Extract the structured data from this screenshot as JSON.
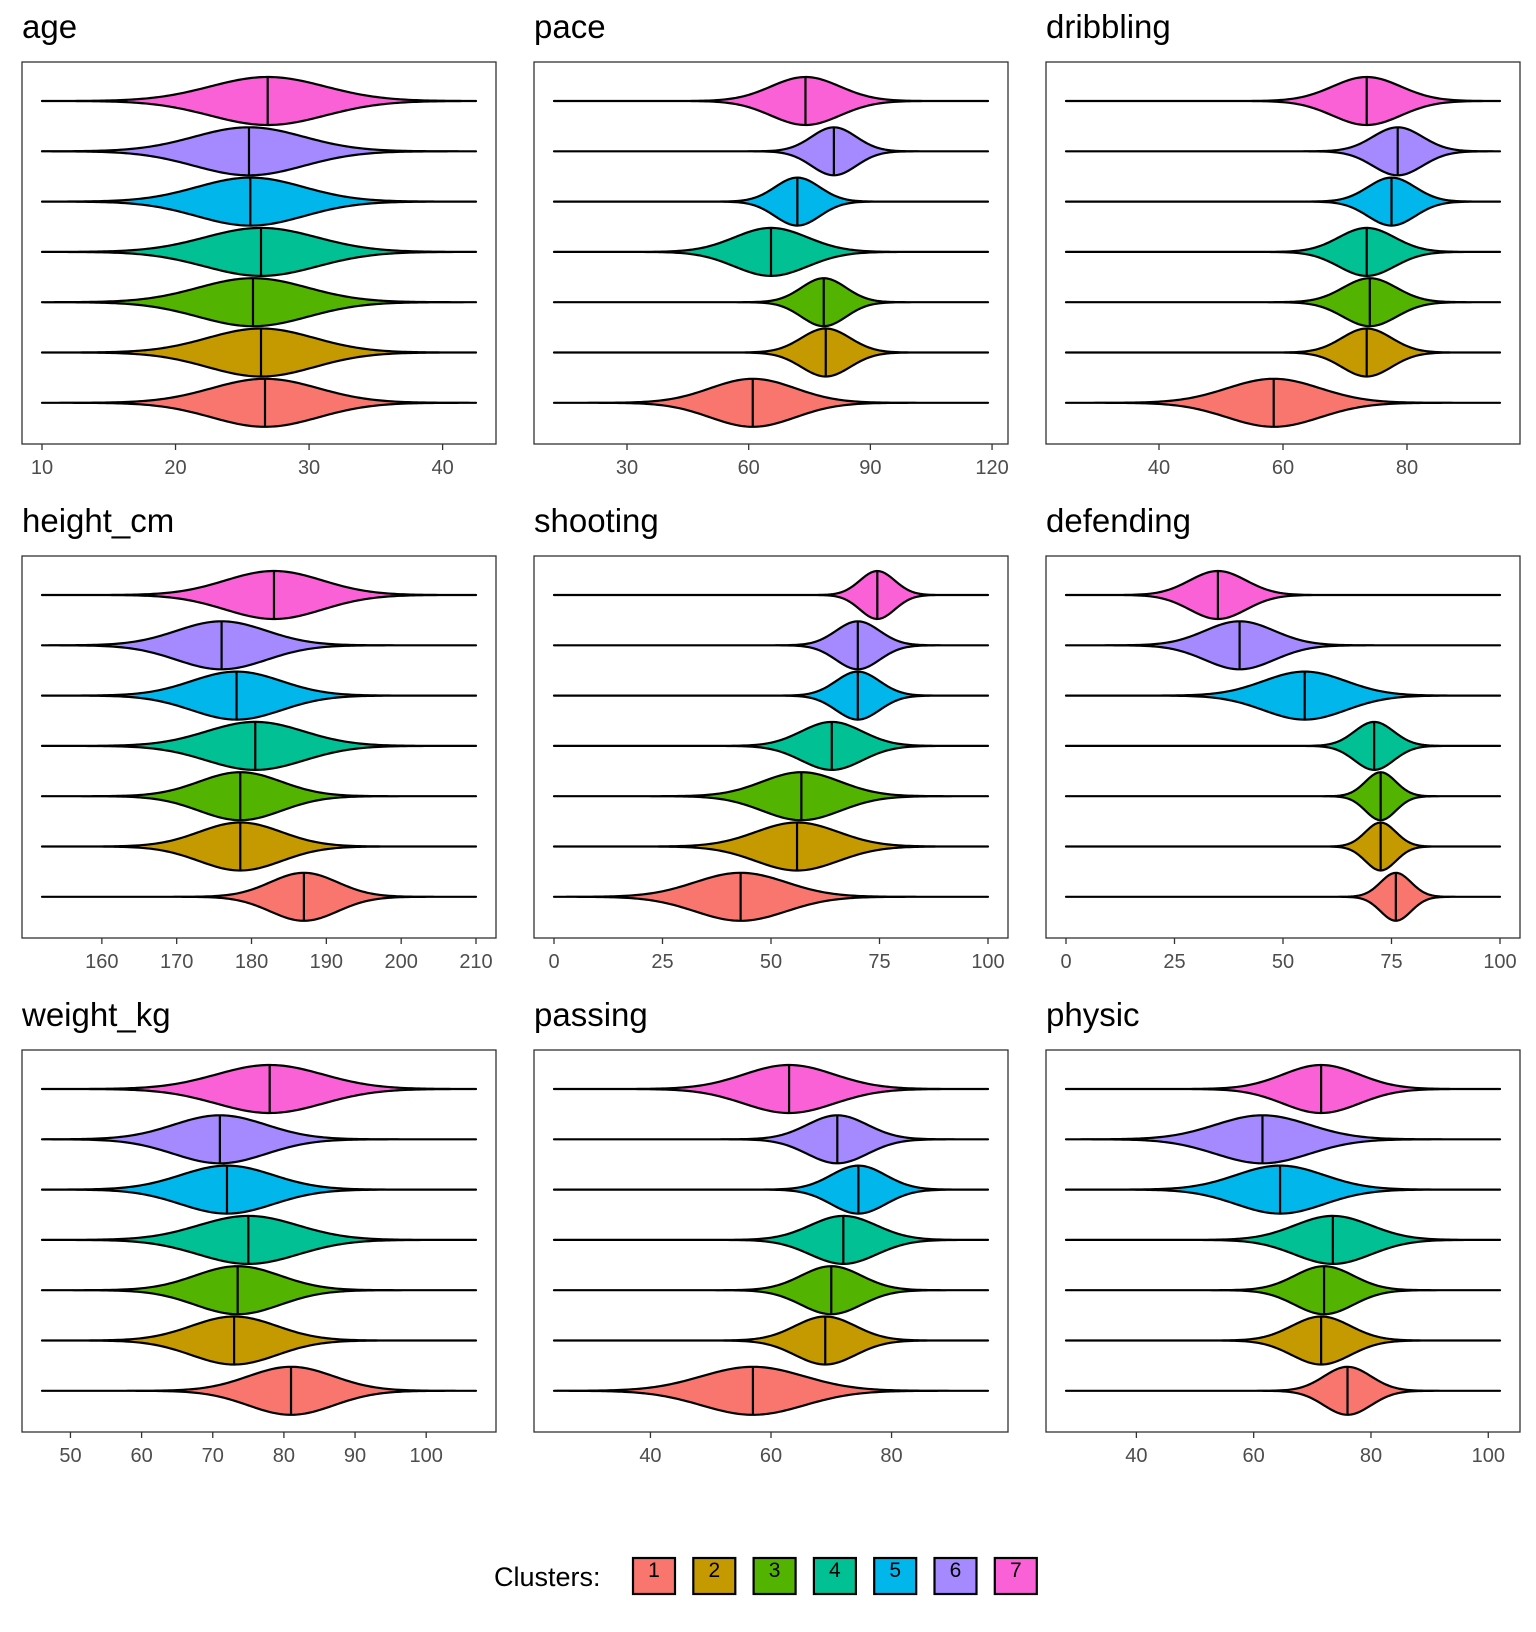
{
  "legend": {
    "title": "Clusters:",
    "keys": [
      "1",
      "2",
      "3",
      "4",
      "5",
      "6",
      "7"
    ],
    "colors": [
      "#F8766D",
      "#C49A00",
      "#53B400",
      "#00C094",
      "#00B6EB",
      "#A58AFF",
      "#FB61D7"
    ]
  },
  "chart_data": [
    {
      "type": "violin",
      "title": "age",
      "xlim": [
        10,
        42.5
      ],
      "ticks": [
        10,
        20,
        30,
        40
      ],
      "tick_labels": [
        "10",
        "20",
        "30",
        "40"
      ],
      "series": [
        {
          "name": "1",
          "median": 26.7,
          "sd": 4.0
        },
        {
          "name": "2",
          "median": 26.4,
          "sd": 4.0
        },
        {
          "name": "3",
          "median": 25.8,
          "sd": 4.1
        },
        {
          "name": "4",
          "median": 26.4,
          "sd": 4.2
        },
        {
          "name": "5",
          "median": 25.6,
          "sd": 4.0
        },
        {
          "name": "6",
          "median": 25.5,
          "sd": 4.1
        },
        {
          "name": "7",
          "median": 26.9,
          "sd": 4.3
        }
      ]
    },
    {
      "type": "violin",
      "title": "pace",
      "xlim": [
        12,
        119
      ],
      "ticks": [
        30,
        60,
        90,
        120
      ],
      "tick_labels": [
        "30",
        "60",
        "90",
        "120"
      ],
      "series": [
        {
          "name": "1",
          "median": 61,
          "sd": 10.5
        },
        {
          "name": "2",
          "median": 79,
          "sd": 6.0
        },
        {
          "name": "3",
          "median": 78.5,
          "sd": 5.5
        },
        {
          "name": "4",
          "median": 65.5,
          "sd": 9.0
        },
        {
          "name": "5",
          "median": 72,
          "sd": 5.5
        },
        {
          "name": "6",
          "median": 81,
          "sd": 5.5
        },
        {
          "name": "7",
          "median": 74,
          "sd": 8.5
        }
      ]
    },
    {
      "type": "violin",
      "title": "dribbling",
      "xlim": [
        25,
        95
      ],
      "ticks": [
        40,
        60,
        80
      ],
      "tick_labels": [
        "40",
        "60",
        "80"
      ],
      "series": [
        {
          "name": "1",
          "median": 58.5,
          "sd": 7.5
        },
        {
          "name": "2",
          "median": 73.5,
          "sd": 4.0
        },
        {
          "name": "3",
          "median": 74,
          "sd": 4.3
        },
        {
          "name": "4",
          "median": 73.5,
          "sd": 4.5
        },
        {
          "name": "5",
          "median": 77.5,
          "sd": 3.8
        },
        {
          "name": "6",
          "median": 78.5,
          "sd": 4.0
        },
        {
          "name": "7",
          "median": 73.5,
          "sd": 5.5
        }
      ]
    },
    {
      "type": "violin",
      "title": "height_cm",
      "xlim": [
        152,
        210
      ],
      "ticks": [
        160,
        170,
        180,
        190,
        200,
        210
      ],
      "tick_labels": [
        "160",
        "170",
        "180",
        "190",
        "200",
        "210"
      ],
      "series": [
        {
          "name": "1",
          "median": 187,
          "sd": 4.5
        },
        {
          "name": "2",
          "median": 178.5,
          "sd": 5.5
        },
        {
          "name": "3",
          "median": 178.5,
          "sd": 5.5
        },
        {
          "name": "4",
          "median": 180.5,
          "sd": 6.5
        },
        {
          "name": "5",
          "median": 178,
          "sd": 6.0
        },
        {
          "name": "6",
          "median": 176,
          "sd": 6.0
        },
        {
          "name": "7",
          "median": 183,
          "sd": 6.5
        }
      ]
    },
    {
      "type": "violin",
      "title": "shooting",
      "xlim": [
        0,
        100
      ],
      "ticks": [
        0,
        25,
        50,
        75,
        100
      ],
      "tick_labels": [
        "0",
        "25",
        "50",
        "75",
        "100"
      ],
      "series": [
        {
          "name": "1",
          "median": 43,
          "sd": 10.5
        },
        {
          "name": "2",
          "median": 56,
          "sd": 9.5
        },
        {
          "name": "3",
          "median": 57,
          "sd": 9.0
        },
        {
          "name": "4",
          "median": 64,
          "sd": 7.0
        },
        {
          "name": "5",
          "median": 70,
          "sd": 5.0
        },
        {
          "name": "6",
          "median": 70,
          "sd": 5.0
        },
        {
          "name": "7",
          "median": 74.5,
          "sd": 4.0
        }
      ]
    },
    {
      "type": "violin",
      "title": "defending",
      "xlim": [
        0,
        100
      ],
      "ticks": [
        0,
        25,
        50,
        75,
        100
      ],
      "tick_labels": [
        "0",
        "25",
        "50",
        "75",
        "100"
      ],
      "series": [
        {
          "name": "1",
          "median": 76,
          "sd": 3.5
        },
        {
          "name": "2",
          "median": 72.5,
          "sd": 3.5
        },
        {
          "name": "3",
          "median": 72.5,
          "sd": 3.5
        },
        {
          "name": "4",
          "median": 71,
          "sd": 4.5
        },
        {
          "name": "5",
          "median": 55,
          "sd": 9.5
        },
        {
          "name": "6",
          "median": 40,
          "sd": 8.0
        },
        {
          "name": "7",
          "median": 35,
          "sd": 6.5
        }
      ]
    },
    {
      "type": "violin",
      "title": "weight_kg",
      "xlim": [
        46,
        107
      ],
      "ticks": [
        50,
        60,
        70,
        80,
        90,
        100
      ],
      "tick_labels": [
        "50",
        "60",
        "70",
        "80",
        "90",
        "100"
      ],
      "series": [
        {
          "name": "1",
          "median": 81,
          "sd": 6.0
        },
        {
          "name": "2",
          "median": 73,
          "sd": 6.0
        },
        {
          "name": "3",
          "median": 73.5,
          "sd": 6.0
        },
        {
          "name": "4",
          "median": 75,
          "sd": 7.0
        },
        {
          "name": "5",
          "median": 72,
          "sd": 6.5
        },
        {
          "name": "6",
          "median": 71,
          "sd": 6.5
        },
        {
          "name": "7",
          "median": 78,
          "sd": 7.5
        }
      ]
    },
    {
      "type": "violin",
      "title": "passing",
      "xlim": [
        24,
        96
      ],
      "ticks": [
        40,
        60,
        80
      ],
      "tick_labels": [
        "40",
        "60",
        "80"
      ],
      "series": [
        {
          "name": "1",
          "median": 57,
          "sd": 8.5
        },
        {
          "name": "2",
          "median": 69,
          "sd": 5.0
        },
        {
          "name": "3",
          "median": 70,
          "sd": 5.0
        },
        {
          "name": "4",
          "median": 72,
          "sd": 5.5
        },
        {
          "name": "5",
          "median": 74.5,
          "sd": 4.5
        },
        {
          "name": "6",
          "median": 71,
          "sd": 5.0
        },
        {
          "name": "7",
          "median": 63,
          "sd": 7.5
        }
      ]
    },
    {
      "type": "violin",
      "title": "physic",
      "xlim": [
        28,
        102
      ],
      "ticks": [
        40,
        60,
        80,
        100
      ],
      "tick_labels": [
        "40",
        "60",
        "80",
        "100"
      ],
      "series": [
        {
          "name": "1",
          "median": 76,
          "sd": 4.0
        },
        {
          "name": "2",
          "median": 71.5,
          "sd": 5.0
        },
        {
          "name": "3",
          "median": 72,
          "sd": 5.0
        },
        {
          "name": "4",
          "median": 73.5,
          "sd": 6.5
        },
        {
          "name": "5",
          "median": 64.5,
          "sd": 7.5
        },
        {
          "name": "6",
          "median": 61.5,
          "sd": 8.0
        },
        {
          "name": "7",
          "median": 71.5,
          "sd": 6.5
        }
      ]
    }
  ]
}
